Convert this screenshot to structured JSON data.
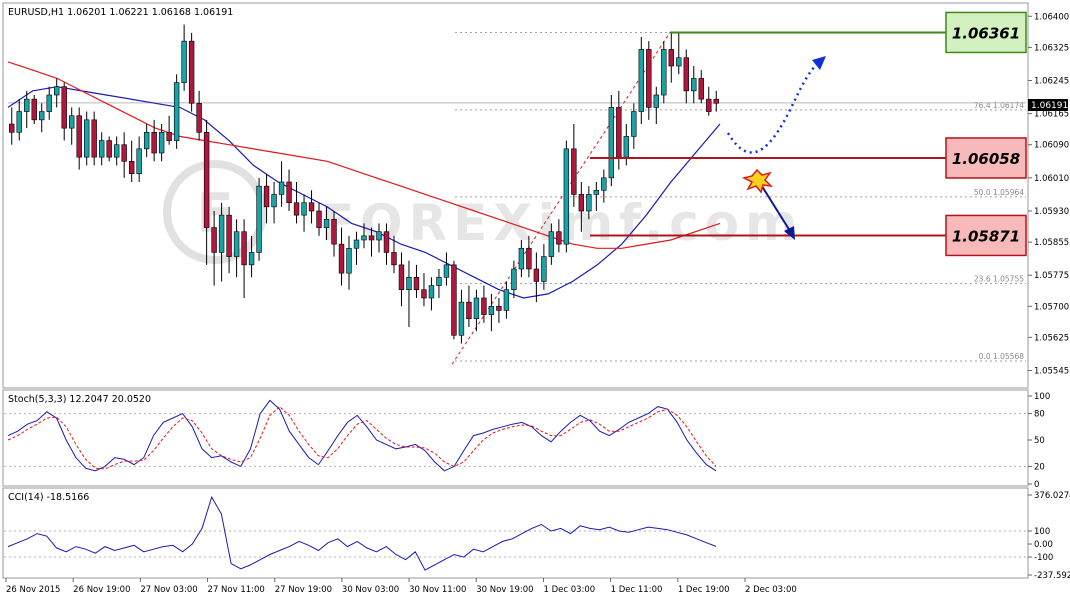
{
  "symbol_header": "EURUSD,H1  1.06201 1.06221 1.06168 1.06191",
  "stoch_header": "Stoch(5,3,3) 12.2047 20.0520",
  "cci_header": "CCI(14) -18.5166",
  "watermark": "FOREXimf.com",
  "current_price_label": "1.06191",
  "colors": {
    "bull": "#19a3a7",
    "bear": "#b1163c",
    "ma_fast": "#1a1ab4",
    "ma_slow": "#e0191b",
    "resistance_box": "#d3f0c0",
    "resistance_border": "#3d8a1a",
    "support_box": "#f7b9b9",
    "support_border": "#b0141c",
    "arrow_up": "#1030d8",
    "arrow_down": "#0a1a9a"
  },
  "levels": [
    {
      "name": "resistance",
      "label": "1.06361",
      "value": 1.06361
    },
    {
      "name": "support-1",
      "label": "1.06058",
      "value": 1.06058
    },
    {
      "name": "support-2",
      "label": "1.05871",
      "value": 1.05871
    }
  ],
  "fibonacci": [
    {
      "label": "76.4  1.06174",
      "value": 1.06174
    },
    {
      "label": "50.0  1.05964",
      "value": 1.05964
    },
    {
      "label": "23.6  1.05755",
      "value": 1.05755
    },
    {
      "label": "0.0  1.05568",
      "value": 1.05568
    }
  ],
  "chart_data": [
    {
      "type": "candlestick",
      "title": "EURUSD,H1",
      "ylim": [
        1.0551,
        1.0642
      ],
      "y_ticks": [
        "1.06400",
        "1.06325",
        "1.06245",
        "1.06165",
        "1.06090",
        "1.06010",
        "1.05930",
        "1.05855",
        "1.05775",
        "1.05700",
        "1.05625",
        "1.05545"
      ],
      "x_ticks": [
        "26 Nov 2015",
        "26 Nov 19:00",
        "27 Nov 03:00",
        "27 Nov 11:00",
        "27 Nov 19:00",
        "30 Nov 03:00",
        "30 Nov 11:00",
        "30 Nov 19:00",
        "1 Dec 03:00",
        "1 Dec 11:00",
        "1 Dec 19:00",
        "2 Dec 03:00"
      ],
      "candles": [
        [
          1.0614,
          1.0618,
          1.0609,
          1.0612
        ],
        [
          1.0612,
          1.062,
          1.061,
          1.0617
        ],
        [
          1.0617,
          1.0622,
          1.0613,
          1.062
        ],
        [
          1.062,
          1.0621,
          1.0614,
          1.0615
        ],
        [
          1.0615,
          1.0619,
          1.0612,
          1.0617
        ],
        [
          1.0617,
          1.0623,
          1.0615,
          1.0621
        ],
        [
          1.0621,
          1.0625,
          1.0618,
          1.0623
        ],
        [
          1.0623,
          1.0624,
          1.061,
          1.0613
        ],
        [
          1.0613,
          1.0618,
          1.0609,
          1.0616
        ],
        [
          1.0616,
          1.0618,
          1.0603,
          1.0606
        ],
        [
          1.0606,
          1.0617,
          1.0604,
          1.0615
        ],
        [
          1.0615,
          1.0617,
          1.0604,
          1.0606
        ],
        [
          1.0606,
          1.0612,
          1.0604,
          1.061
        ],
        [
          1.061,
          1.0611,
          1.0605,
          1.0606
        ],
        [
          1.0606,
          1.0611,
          1.0604,
          1.0609
        ],
        [
          1.0609,
          1.0612,
          1.0601,
          1.0605
        ],
        [
          1.0605,
          1.061,
          1.06,
          1.0602
        ],
        [
          1.0602,
          1.0611,
          1.06,
          1.0608
        ],
        [
          1.0608,
          1.0614,
          1.0606,
          1.0612
        ],
        [
          1.0612,
          1.0615,
          1.0605,
          1.0607
        ],
        [
          1.0607,
          1.0614,
          1.0605,
          1.0612
        ],
        [
          1.0612,
          1.0616,
          1.0609,
          1.061
        ],
        [
          1.061,
          1.0626,
          1.0608,
          1.0624
        ],
        [
          1.0624,
          1.0638,
          1.0622,
          1.0634
        ],
        [
          1.0634,
          1.0636,
          1.0617,
          1.0619
        ],
        [
          1.0619,
          1.0622,
          1.061,
          1.0612
        ],
        [
          1.0612,
          1.0615,
          1.058,
          1.0589
        ],
        [
          1.0589,
          1.0593,
          1.0575,
          1.0583
        ],
        [
          1.0583,
          1.0595,
          1.0576,
          1.0592
        ],
        [
          1.0592,
          1.0594,
          1.0578,
          1.0582
        ],
        [
          1.0582,
          1.0591,
          1.0577,
          1.0588
        ],
        [
          1.0588,
          1.0591,
          1.0572,
          1.058
        ],
        [
          1.058,
          1.0587,
          1.0577,
          1.0583
        ],
        [
          1.0583,
          1.0601,
          1.0581,
          1.0599
        ],
        [
          1.0599,
          1.0602,
          1.059,
          1.0594
        ],
        [
          1.0594,
          1.06,
          1.059,
          1.0597
        ],
        [
          1.0597,
          1.0605,
          1.0594,
          1.06
        ],
        [
          1.06,
          1.0603,
          1.0593,
          1.0595
        ],
        [
          1.0595,
          1.06,
          1.059,
          1.0592
        ],
        [
          1.0592,
          1.0597,
          1.0588,
          1.0595
        ],
        [
          1.0595,
          1.0598,
          1.059,
          1.0593
        ],
        [
          1.0593,
          1.0595,
          1.0587,
          1.0589
        ],
        [
          1.0589,
          1.0594,
          1.0586,
          1.0591
        ],
        [
          1.0591,
          1.0593,
          1.0582,
          1.0585
        ],
        [
          1.0585,
          1.0589,
          1.0575,
          1.0578
        ],
        [
          1.0578,
          1.0587,
          1.0574,
          1.0584
        ],
        [
          1.0584,
          1.0588,
          1.058,
          1.0586
        ],
        [
          1.0586,
          1.059,
          1.0584,
          1.0587
        ],
        [
          1.0587,
          1.0589,
          1.0582,
          1.0586
        ],
        [
          1.0586,
          1.059,
          1.0583,
          1.0588
        ],
        [
          1.0588,
          1.059,
          1.058,
          1.0583
        ],
        [
          1.0583,
          1.0587,
          1.0578,
          1.058
        ],
        [
          1.058,
          1.0583,
          1.057,
          1.0574
        ],
        [
          1.0574,
          1.0581,
          1.0565,
          1.0577
        ],
        [
          1.0577,
          1.058,
          1.0572,
          1.0574
        ],
        [
          1.0574,
          1.0578,
          1.057,
          1.0572
        ],
        [
          1.0572,
          1.0577,
          1.0569,
          1.0575
        ],
        [
          1.0575,
          1.0579,
          1.0572,
          1.0577
        ],
        [
          1.0577,
          1.0583,
          1.0575,
          1.058
        ],
        [
          1.058,
          1.0581,
          1.0562,
          1.0563
        ],
        [
          1.0563,
          1.0574,
          1.0561,
          1.0571
        ],
        [
          1.0571,
          1.0575,
          1.0565,
          1.0567
        ],
        [
          1.0567,
          1.0574,
          1.0564,
          1.0572
        ],
        [
          1.0572,
          1.0575,
          1.0566,
          1.0568
        ],
        [
          1.0568,
          1.0573,
          1.0564,
          1.057
        ],
        [
          1.057,
          1.0572,
          1.0566,
          1.0569
        ],
        [
          1.0569,
          1.0576,
          1.0567,
          1.0574
        ],
        [
          1.0574,
          1.0581,
          1.0572,
          1.0579
        ],
        [
          1.0579,
          1.0586,
          1.0577,
          1.0584
        ],
        [
          1.0584,
          1.0587,
          1.0577,
          1.0579
        ],
        [
          1.0579,
          1.0583,
          1.0571,
          1.0576
        ],
        [
          1.0576,
          1.0585,
          1.0574,
          1.0582
        ],
        [
          1.0582,
          1.059,
          1.058,
          1.0588
        ],
        [
          1.0588,
          1.0591,
          1.0583,
          1.0585
        ],
        [
          1.0585,
          1.061,
          1.0583,
          1.0608
        ],
        [
          1.0608,
          1.0614,
          1.0594,
          1.0597
        ],
        [
          1.0597,
          1.06,
          1.0588,
          1.0593
        ],
        [
          1.0593,
          1.0599,
          1.0591,
          1.0597
        ],
        [
          1.0597,
          1.06,
          1.0593,
          1.0598
        ],
        [
          1.0598,
          1.0603,
          1.0595,
          1.0601
        ],
        [
          1.0601,
          1.0621,
          1.0599,
          1.0618
        ],
        [
          1.0618,
          1.0622,
          1.0603,
          1.0606
        ],
        [
          1.0606,
          1.0614,
          1.0604,
          1.0611
        ],
        [
          1.0611,
          1.0619,
          1.0608,
          1.0617
        ],
        [
          1.0617,
          1.0635,
          1.0614,
          1.0632
        ],
        [
          1.0632,
          1.0634,
          1.0615,
          1.0618
        ],
        [
          1.0618,
          1.0623,
          1.0614,
          1.0621
        ],
        [
          1.0621,
          1.0634,
          1.0619,
          1.0632
        ],
        [
          1.0632,
          1.0636,
          1.0624,
          1.0628
        ],
        [
          1.0628,
          1.0636,
          1.0626,
          1.063
        ],
        [
          1.063,
          1.0632,
          1.0619,
          1.0622
        ],
        [
          1.0622,
          1.0628,
          1.0619,
          1.0625
        ],
        [
          1.0625,
          1.0627,
          1.0619,
          1.062
        ],
        [
          1.062,
          1.0623,
          1.0616,
          1.0617
        ],
        [
          1.062,
          1.0622,
          1.0617,
          1.0619
        ]
      ],
      "moving_averages": [
        {
          "name": "MA fast",
          "color": "#1a1ab4",
          "values": [
            1.0618,
            1.0622,
            1.0623,
            1.0622,
            1.0621,
            1.062,
            1.0619,
            1.0618,
            1.0615,
            1.061,
            1.0604,
            1.06,
            1.0597,
            1.0594,
            1.059,
            1.0588,
            1.0585,
            1.0583,
            1.058,
            1.0577,
            1.0574,
            1.0572,
            1.0573,
            1.0576,
            1.058,
            1.0585,
            1.0592,
            1.06,
            1.0607,
            1.0614
          ]
        },
        {
          "name": "MA slow",
          "color": "#e0191b",
          "values": [
            1.0629,
            1.0627,
            1.0625,
            1.0622,
            1.0619,
            1.0616,
            1.0613,
            1.0611,
            1.061,
            1.0609,
            1.0608,
            1.0607,
            1.0606,
            1.0605,
            1.0603,
            1.0601,
            1.0599,
            1.0597,
            1.0595,
            1.0593,
            1.0591,
            1.0589,
            1.0587,
            1.0585,
            1.0584,
            1.0584,
            1.0585,
            1.0586,
            1.0588,
            1.059
          ]
        }
      ]
    },
    {
      "type": "line",
      "title": "Stoch(5,3,3)",
      "ylim": [
        0,
        100
      ],
      "y_ticks": [
        "100",
        "80",
        "50",
        "20",
        "0"
      ],
      "series": [
        {
          "name": "%K",
          "color": "#1a1ab4",
          "values": [
            55,
            60,
            68,
            72,
            82,
            75,
            50,
            30,
            18,
            15,
            20,
            30,
            28,
            22,
            30,
            55,
            70,
            75,
            80,
            65,
            40,
            30,
            32,
            25,
            20,
            40,
            80,
            95,
            85,
            60,
            45,
            30,
            22,
            38,
            55,
            70,
            78,
            65,
            50,
            45,
            40,
            42,
            45,
            38,
            25,
            15,
            20,
            38,
            55,
            58,
            62,
            65,
            68,
            70,
            65,
            55,
            48,
            60,
            70,
            78,
            72,
            60,
            55,
            62,
            70,
            75,
            80,
            88,
            85,
            70,
            50,
            35,
            22,
            15
          ]
        },
        {
          "name": "%D",
          "color": "#e0191b",
          "values": [
            50,
            55,
            62,
            68,
            75,
            76,
            65,
            45,
            28,
            18,
            17,
            22,
            26,
            26,
            27,
            38,
            52,
            65,
            75,
            72,
            58,
            40,
            32,
            28,
            25,
            30,
            52,
            78,
            88,
            78,
            60,
            45,
            32,
            30,
            40,
            55,
            68,
            72,
            62,
            52,
            45,
            42,
            42,
            41,
            35,
            25,
            20,
            25,
            38,
            50,
            58,
            62,
            65,
            67,
            66,
            60,
            55,
            55,
            62,
            70,
            73,
            68,
            60,
            60,
            65,
            70,
            75,
            82,
            85,
            78,
            65,
            48,
            32,
            20
          ]
        }
      ]
    },
    {
      "type": "line",
      "title": "CCI(14)",
      "ylim": [
        -237.5927,
        376.0274
      ],
      "y_ticks": [
        "376.0274",
        "100",
        "0.00",
        "-100",
        "-237.5927"
      ],
      "series": [
        {
          "name": "CCI",
          "color": "#1a1ab4",
          "values": [
            -20,
            10,
            40,
            80,
            60,
            -30,
            -60,
            -20,
            -40,
            -70,
            -20,
            -50,
            -30,
            -10,
            -60,
            -40,
            -20,
            -10,
            -60,
            0,
            120,
            360,
            230,
            -150,
            -190,
            -160,
            -120,
            -80,
            -50,
            -20,
            20,
            -10,
            -50,
            10,
            40,
            -20,
            20,
            -30,
            -60,
            -20,
            -80,
            -120,
            -60,
            -200,
            -160,
            -120,
            -80,
            -100,
            -40,
            -60,
            -20,
            20,
            40,
            80,
            120,
            150,
            100,
            120,
            80,
            140,
            120,
            110,
            130,
            100,
            90,
            110,
            130,
            120,
            110,
            90,
            70,
            40,
            10,
            -18.5
          ]
        }
      ]
    }
  ]
}
